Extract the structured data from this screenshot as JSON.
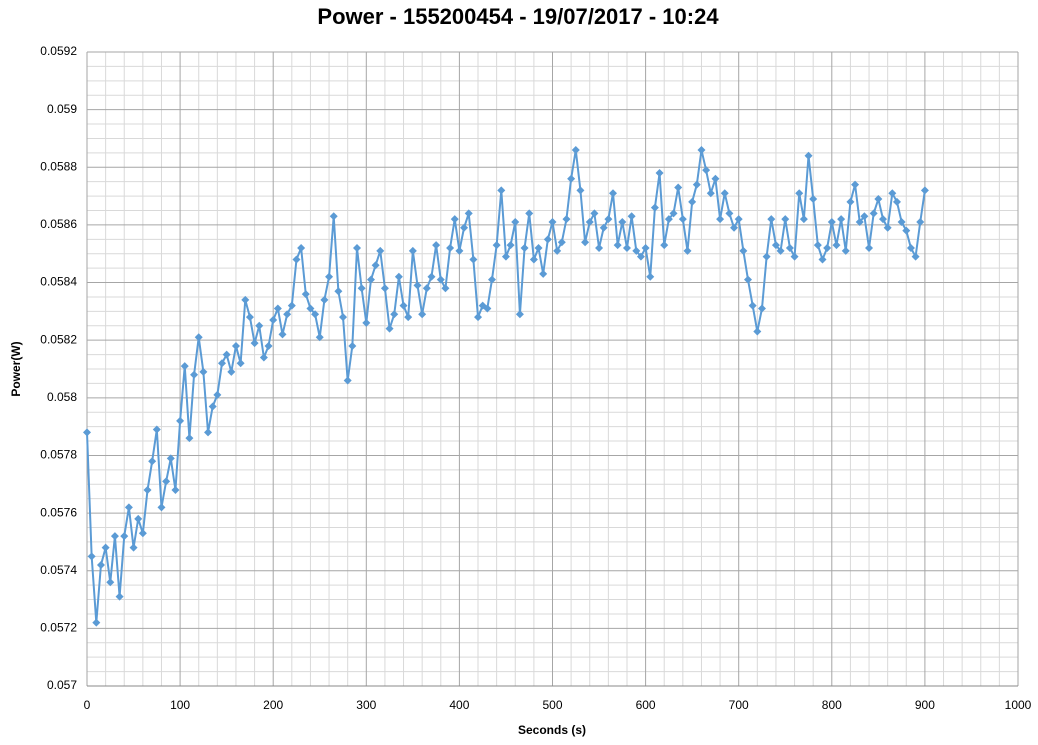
{
  "chart_data": {
    "type": "line",
    "title": "Power - 155200454 - 19/07/2017 - 10:24",
    "x_label": "Seconds (s)",
    "y_label": "Power(W)",
    "xlim": [
      0,
      1000
    ],
    "xticks": [
      0,
      100,
      200,
      300,
      400,
      500,
      600,
      700,
      800,
      900,
      1000
    ],
    "ylim": [
      0.057,
      0.0592
    ],
    "yticks": [
      0.057,
      0.0572,
      0.0574,
      0.0576,
      0.0578,
      0.058,
      0.0582,
      0.0584,
      0.0586,
      0.0588,
      0.059,
      0.0592
    ],
    "grid": true,
    "minor_grid": true,
    "marker": "diamond",
    "x": [
      0,
      5,
      10,
      15,
      20,
      25,
      30,
      35,
      40,
      45,
      50,
      55,
      60,
      65,
      70,
      75,
      80,
      85,
      90,
      95,
      100,
      105,
      110,
      115,
      120,
      125,
      130,
      135,
      140,
      145,
      150,
      155,
      160,
      165,
      170,
      175,
      180,
      185,
      190,
      195,
      200,
      205,
      210,
      215,
      220,
      225,
      230,
      235,
      240,
      245,
      250,
      255,
      260,
      265,
      270,
      275,
      280,
      285,
      290,
      295,
      300,
      305,
      310,
      315,
      320,
      325,
      330,
      335,
      340,
      345,
      350,
      355,
      360,
      365,
      370,
      375,
      380,
      385,
      390,
      395,
      400,
      405,
      410,
      415,
      420,
      425,
      430,
      435,
      440,
      445,
      450,
      455,
      460,
      465,
      470,
      475,
      480,
      485,
      490,
      495,
      500,
      505,
      510,
      515,
      520,
      525,
      530,
      535,
      540,
      545,
      550,
      555,
      560,
      565,
      570,
      575,
      580,
      585,
      590,
      595,
      600,
      605,
      610,
      615,
      620,
      625,
      630,
      635,
      640,
      645,
      650,
      655,
      660,
      665,
      670,
      675,
      680,
      685,
      690,
      695,
      700,
      705,
      710,
      715,
      720,
      725,
      730,
      735,
      740,
      745,
      750,
      755,
      760,
      765,
      770,
      775,
      780,
      785,
      790,
      795,
      800,
      805,
      810,
      815,
      820,
      825,
      830,
      835,
      840,
      845,
      850,
      855,
      860,
      865,
      870,
      875,
      880,
      885,
      890,
      895,
      900
    ],
    "series": [
      {
        "name": "Power(W)",
        "color": "#5b9bd5",
        "values": [
          0.05788,
          0.05745,
          0.05722,
          0.05742,
          0.05748,
          0.05736,
          0.05752,
          0.05731,
          0.05752,
          0.05762,
          0.05748,
          0.05758,
          0.05753,
          0.05768,
          0.05778,
          0.05789,
          0.05762,
          0.05771,
          0.05779,
          0.05768,
          0.05792,
          0.05811,
          0.05786,
          0.05808,
          0.05821,
          0.05809,
          0.05788,
          0.05797,
          0.05801,
          0.05812,
          0.05815,
          0.05809,
          0.05818,
          0.05812,
          0.05834,
          0.05828,
          0.05819,
          0.05825,
          0.05814,
          0.05818,
          0.05827,
          0.05831,
          0.05822,
          0.05829,
          0.05832,
          0.05848,
          0.05852,
          0.05836,
          0.05831,
          0.05829,
          0.05821,
          0.05834,
          0.05842,
          0.05863,
          0.05837,
          0.05828,
          0.05806,
          0.05818,
          0.05852,
          0.05838,
          0.05826,
          0.05841,
          0.05846,
          0.05851,
          0.05838,
          0.05824,
          0.05829,
          0.05842,
          0.05832,
          0.05828,
          0.05851,
          0.05839,
          0.05829,
          0.05838,
          0.05842,
          0.05853,
          0.05841,
          0.05838,
          0.05852,
          0.05862,
          0.05851,
          0.05859,
          0.05864,
          0.05848,
          0.05828,
          0.05832,
          0.05831,
          0.05841,
          0.05853,
          0.05872,
          0.05849,
          0.05853,
          0.05861,
          0.05829,
          0.05852,
          0.05864,
          0.05848,
          0.05852,
          0.05843,
          0.05855,
          0.05861,
          0.05851,
          0.05854,
          0.05862,
          0.05876,
          0.05886,
          0.05872,
          0.05854,
          0.05861,
          0.05864,
          0.05852,
          0.05859,
          0.05862,
          0.05871,
          0.05853,
          0.05861,
          0.05852,
          0.05863,
          0.05851,
          0.05849,
          0.05852,
          0.05842,
          0.05866,
          0.05878,
          0.05853,
          0.05862,
          0.05864,
          0.05873,
          0.05862,
          0.05851,
          0.05868,
          0.05874,
          0.05886,
          0.05879,
          0.05871,
          0.05876,
          0.05862,
          0.05871,
          0.05864,
          0.05859,
          0.05862,
          0.05851,
          0.05841,
          0.05832,
          0.05823,
          0.05831,
          0.05849,
          0.05862,
          0.05853,
          0.05851,
          0.05862,
          0.05852,
          0.05849,
          0.05871,
          0.05862,
          0.05884,
          0.05869,
          0.05853,
          0.05848,
          0.05852,
          0.05861,
          0.05853,
          0.05862,
          0.05851,
          0.05868,
          0.05874,
          0.05861,
          0.05863,
          0.05852,
          0.05864,
          0.05869,
          0.05862,
          0.05859,
          0.05871,
          0.05868,
          0.05861,
          0.05858,
          0.05852,
          0.05849,
          0.05861,
          0.05872
        ]
      }
    ]
  }
}
